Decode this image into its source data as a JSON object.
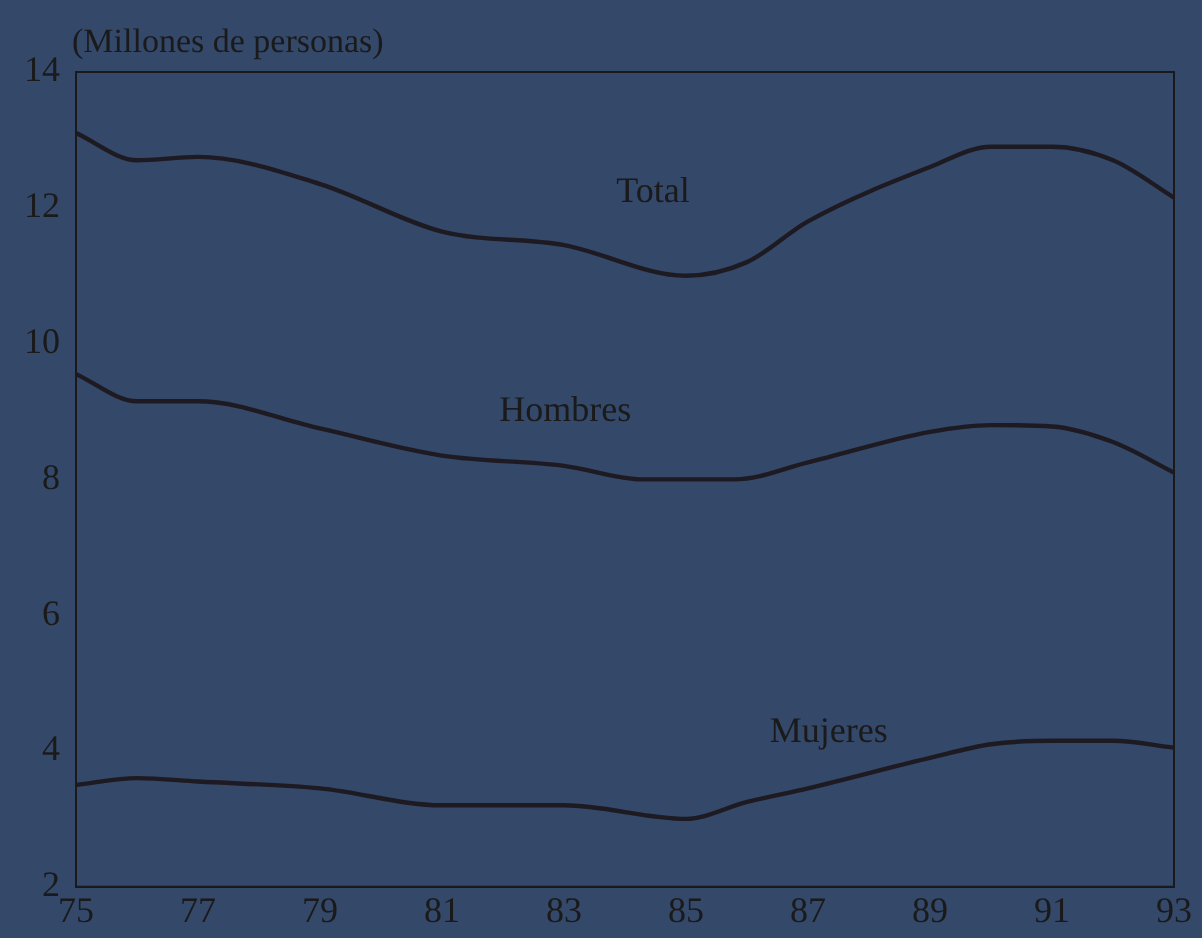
{
  "chart_data": {
    "type": "line",
    "ylabel": "(Millones de personas)",
    "xlim": [
      75,
      93
    ],
    "xticks": [
      75,
      77,
      79,
      81,
      83,
      85,
      87,
      89,
      91,
      93
    ],
    "ylim": [
      2,
      14
    ],
    "yticks": [
      2,
      4,
      6,
      8,
      10,
      12,
      14
    ],
    "grid": false,
    "legend": false,
    "marker": "none",
    "line_style": "solid",
    "series": [
      {
        "name": "Total",
        "color": "#1e1a22",
        "x": [
          75,
          76,
          77,
          79,
          81,
          83,
          85,
          86,
          87,
          89,
          90,
          91,
          92,
          93
        ],
        "values": [
          13.1,
          12.7,
          12.75,
          12.35,
          11.65,
          11.45,
          11.0,
          11.2,
          11.8,
          12.6,
          12.9,
          12.9,
          12.7,
          12.15
        ]
      },
      {
        "name": "Hombres",
        "color": "#1e1a22",
        "x": [
          75,
          76,
          77,
          79,
          81,
          83,
          84.3,
          85.8,
          87,
          89,
          90,
          91,
          92,
          93
        ],
        "values": [
          9.55,
          9.15,
          9.15,
          8.75,
          8.35,
          8.2,
          8.0,
          8.0,
          8.25,
          8.7,
          8.8,
          8.78,
          8.55,
          8.1
        ]
      },
      {
        "name": "Mujeres",
        "color": "#1e1a22",
        "x": [
          75,
          76,
          77,
          79,
          81,
          83,
          85,
          86,
          87,
          89,
          90,
          91,
          92,
          93
        ],
        "values": [
          3.5,
          3.6,
          3.55,
          3.45,
          3.2,
          3.2,
          3.0,
          3.25,
          3.45,
          3.9,
          4.1,
          4.15,
          4.15,
          4.05
        ]
      }
    ]
  }
}
